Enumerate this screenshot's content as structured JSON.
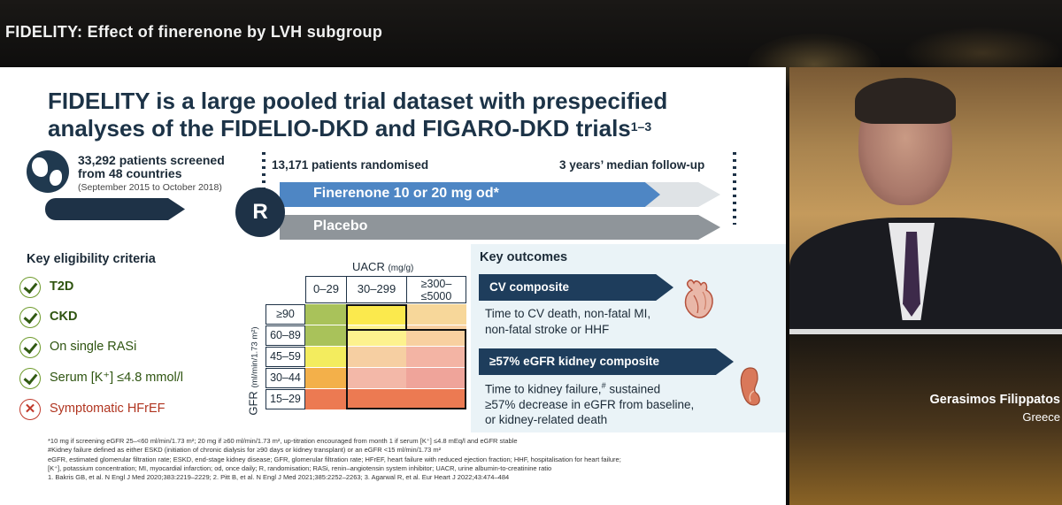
{
  "header": {
    "title": "FIDELITY: Effect of finerenone by LVH subgroup"
  },
  "slide": {
    "headline_line1": "FIDELITY is a large pooled trial dataset with prespecified",
    "headline_line2": "analyses of the FIDELIO-DKD and FIGARO-DKD trials",
    "headline_sup": "1–3",
    "screened_line1": "33,292 patients screened",
    "screened_line2": "from 48 countries",
    "screened_dates": "(September 2015 to October 2018)",
    "randomised": "13,171 patients randomised",
    "followup": "3 years’ median follow-up",
    "randomise_symbol": "R",
    "arm_finerenone": "Finerenone 10 or 20 mg od*",
    "arm_placebo": "Placebo",
    "eligibility": {
      "heading": "Key eligibility criteria",
      "items": [
        {
          "label": "T2D",
          "status": "include",
          "bold": true
        },
        {
          "label": "CKD",
          "status": "include",
          "bold": true
        },
        {
          "label": "On single RASi",
          "status": "include",
          "bold": false
        },
        {
          "label": "Serum [K⁺] ≤4.8 mmol/l",
          "status": "include",
          "bold": false
        },
        {
          "label": "Symptomatic HFrEF",
          "status": "exclude",
          "bold": false
        }
      ],
      "exclude_symbol": "✕"
    },
    "grid": {
      "uacr_title": "UACR",
      "uacr_unit": "(mg/g)",
      "cols": [
        "0–29",
        "30–299",
        "≥300–",
        "≤5000"
      ],
      "rows": [
        "≥90",
        "60–89",
        "45–59",
        "30–44",
        "15–29"
      ],
      "gfr_title": "GFR",
      "gfr_unit": "(ml/min/1.73 m²)",
      "cell_colors": [
        [
          "#a9c25a",
          "#fbe94d",
          "#f7d79a"
        ],
        [
          "#a9c25a",
          "#fdf28e",
          "#f8d0a0"
        ],
        [
          "#f3ec5e",
          "#f6cfa2",
          "#f3b4a4"
        ],
        [
          "#f3b04a",
          "#f3b8a8",
          "#efa49a"
        ],
        [
          "#ec7a52",
          "#ec7a52",
          "#ec7a52"
        ]
      ]
    },
    "outcomes": {
      "heading": "Key outcomes",
      "cv_label": "CV composite",
      "cv_desc_line1": "Time to CV death, non-fatal MI,",
      "cv_desc_line2": "non-fatal stroke or HHF",
      "egfr_label": "≥57% eGFR kidney composite",
      "egfr_desc_line1": "Time to kidney failure,",
      "egfr_desc_sup": "#",
      "egfr_desc_line1b": " sustained",
      "egfr_desc_line2": "≥57% decrease in eGFR from baseline,",
      "egfr_desc_line3": "or kidney-related death"
    },
    "footnotes": [
      "*10 mg if screening eGFR 25–<60 ml/min/1.73 m²; 20 mg if ≥60 ml/min/1.73 m², up-titration encouraged from month 1 if serum [K⁺] ≤4.8 mEq/l and eGFR stable",
      "#Kidney failure defined as either ESKD (initiation of chronic dialysis for ≥90 days or kidney transplant) or an eGFR <15 ml/min/1.73 m²",
      "eGFR, estimated glomerular filtration rate; ESKD, end-stage kidney disease; GFR, glomerular filtration rate; HFrEF, heart failure with reduced ejection fraction; HHF, hospitalisation for heart failure;",
      "[K⁺], potassium concentration; MI, myocardial infarction; od, once daily; R, randomisation; RASi, renin–angiotensin system inhibitor; UACR, urine albumin-to-creatinine ratio",
      "1. Bakris GB, et al. N Engl J Med 2020;383:2219–2229; 2. Pitt B, et al. N Engl J Med 2021;385:2252–2263; 3. Agarwal R, et al. Eur Heart J 2022;43:474–484"
    ]
  },
  "speaker": {
    "name": "Gerasimos Filippatos",
    "country": "Greece"
  },
  "colors": {
    "navy": "#1e3247",
    "finerenone": "#4e86c4",
    "placebo": "#8f959a",
    "include": "#2e5410",
    "exclude": "#b0341f"
  },
  "icons": [
    "globe-icon",
    "check-icon",
    "cross-icon",
    "heart-icon",
    "kidney-icon"
  ]
}
